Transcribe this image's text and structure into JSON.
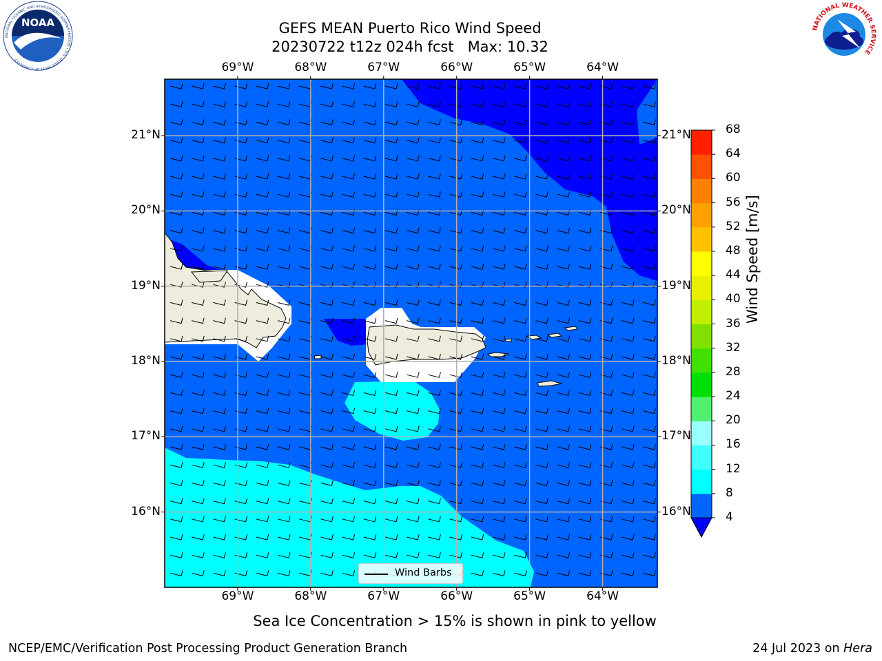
{
  "title": {
    "line1": "GEFS MEAN Puerto Rico Wind Speed",
    "line2": "20230722 t12z 024h fcst   Max: 10.32"
  },
  "subtitle": "Sea Ice Concentration > 15% is shown in pink to yellow",
  "footer": {
    "left": "NCEP/EMC/Verification Post Processing Product Generation Branch",
    "right_prefix": "24 Jul 2023 on ",
    "right_host": "Hera"
  },
  "map": {
    "lon_labels": [
      "69°W",
      "68°W",
      "67°W",
      "66°W",
      "65°W",
      "64°W"
    ],
    "lon_values": [
      -69,
      -68,
      -67,
      -66,
      -65,
      -64
    ],
    "lat_labels": [
      "21°N",
      "20°N",
      "19°N",
      "18°N",
      "17°N",
      "16°N"
    ],
    "lat_values": [
      21,
      20,
      19,
      18,
      17,
      16
    ],
    "lon_range": [
      -70,
      -63.25
    ],
    "lat_range": [
      15,
      21.75
    ],
    "legend_label": "Wind Barbs",
    "wind_direction": "easterly",
    "land_color": "#eeecdc",
    "ocean_low_color": "#0000ff"
  },
  "colorbar": {
    "title": "Wind Speed [m/s]",
    "levels": [
      "4",
      "8",
      "12",
      "16",
      "20",
      "24",
      "28",
      "32",
      "36",
      "40",
      "44",
      "48",
      "52",
      "56",
      "60",
      "64",
      "68"
    ],
    "colors": [
      "#0064ff",
      "#00ffff",
      "#40ffff",
      "#99ffff",
      "#50f070",
      "#00e000",
      "#40e000",
      "#80e000",
      "#c0f000",
      "#e8f000",
      "#ffff00",
      "#ffc000",
      "#ffa000",
      "#ff8000",
      "#ff5000",
      "#ff2000"
    ],
    "extend_min_color": "#0000ff"
  },
  "logos": {
    "noaa_text": "NOAA",
    "noaa_ring": "NATIONAL OCEANIC AND ATMOSPHERIC ADMINISTRATION • U.S. DEPARTMENT OF COMMERCE",
    "nws_ring": "NATIONAL WEATHER SERVICE"
  }
}
